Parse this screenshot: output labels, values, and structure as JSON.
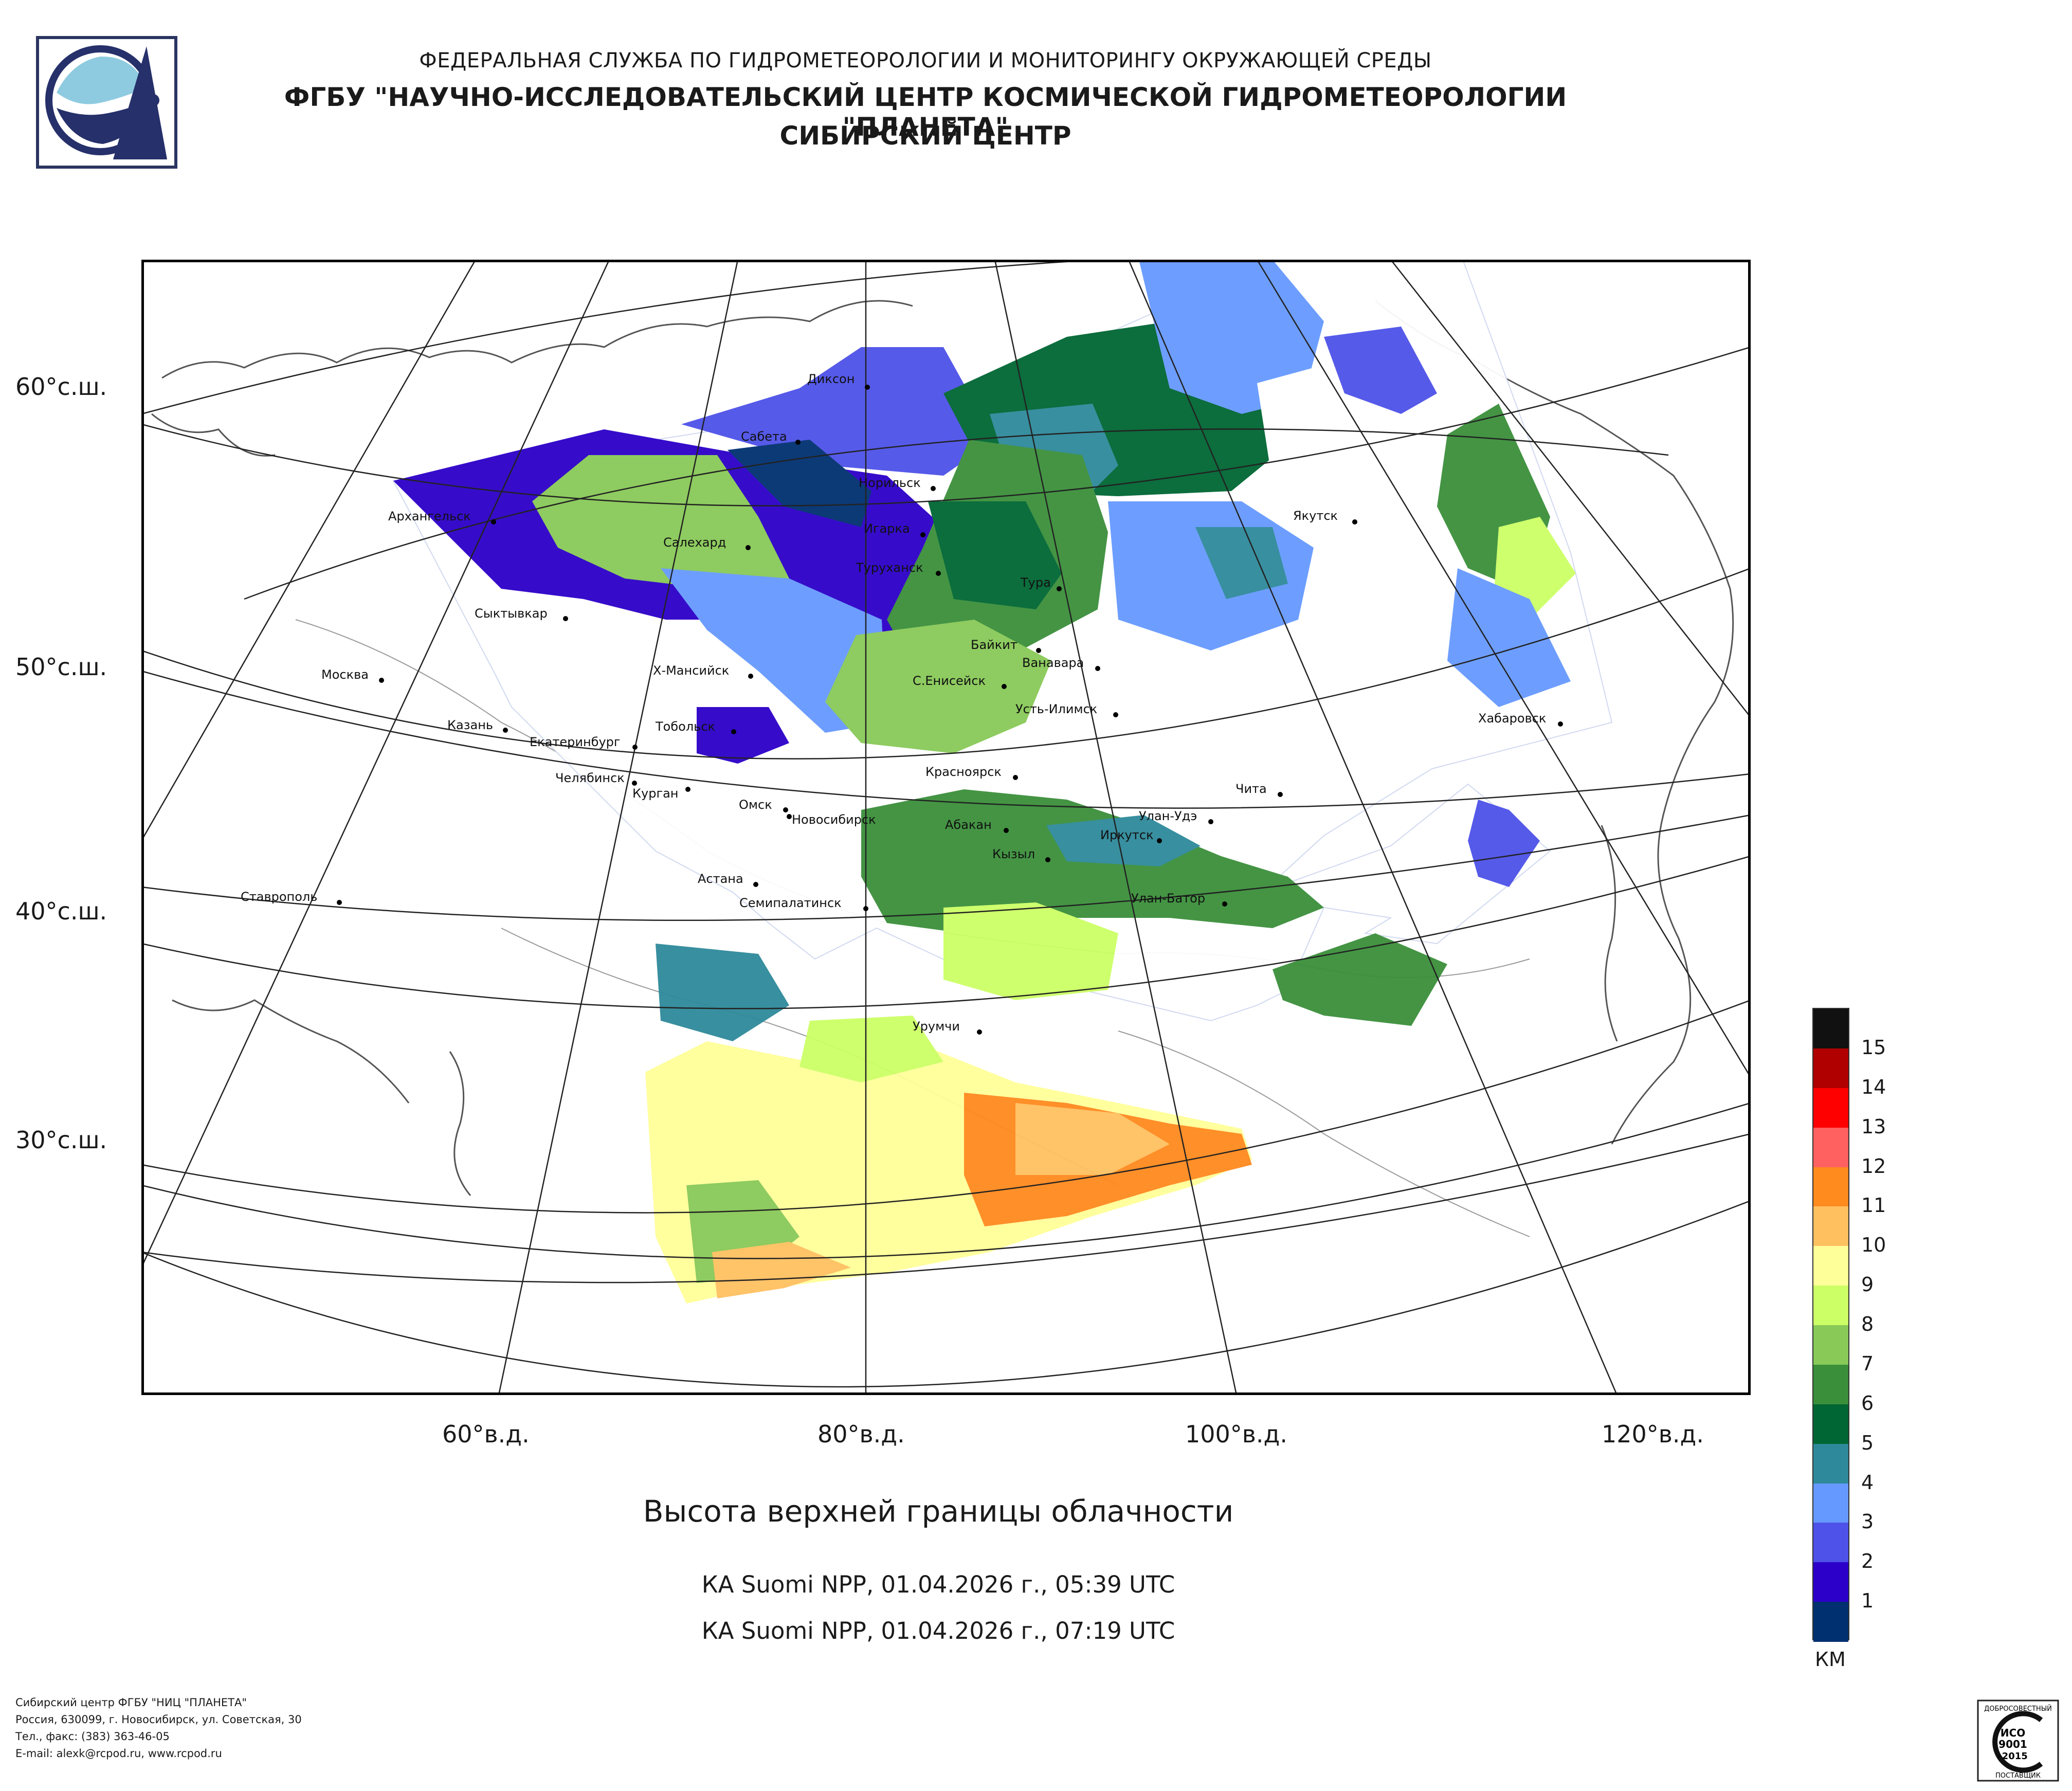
{
  "header": {
    "line1": "ФЕДЕРАЛЬНАЯ СЛУЖБА ПО ГИДРОМЕТЕОРОЛОГИИ И МОНИТОРИНГУ ОКРУЖАЮЩЕЙ СРЕДЫ",
    "line2": "ФГБУ \"НАУЧНО-ИССЛЕДОВАТЕЛЬСКИЙ ЦЕНТР КОСМИЧЕСКОЙ ГИДРОМЕТЕОРОЛОГИИ \"ПЛАНЕТА\"",
    "line3": "СИБИРСКИЙ ЦЕНТР"
  },
  "map": {
    "lat_labels": [
      "60°с.ш.",
      "50°с.ш.",
      "40°с.ш.",
      "30°с.ш."
    ],
    "lon_labels": [
      "60°в.д.",
      "80°в.д.",
      "100°в.д.",
      "120°в.д."
    ],
    "cities": [
      "Диксон",
      "Сабета",
      "Норильск",
      "Игарка",
      "Архангельск",
      "Салехард",
      "Туруханск",
      "Якутск",
      "Тура",
      "Сыктывкар",
      "Байкит",
      "Ванавара",
      "Москва",
      "Х-Мансийск",
      "С.Енисейск",
      "Усть-Илимск",
      "Казань",
      "Тобольск",
      "Хабаровск",
      "Екатеринбург",
      "Красноярск",
      "Челябинск",
      "Курган",
      "Чита",
      "Омск",
      "Новосибирск",
      "Абакан",
      "Улан-Удэ",
      "Иркутск",
      "Кызыл",
      "Астана",
      "Ставрополь",
      "Улан-Батор",
      "Семипалатинск",
      "Урумчи"
    ]
  },
  "title": "Высота верхней границы облачности",
  "passes": [
    "КА Suomi NPP, 01.04.2026 г., 05:39 UTC",
    "КА Suomi NPP, 01.04.2026 г., 07:19 UTC"
  ],
  "legend": {
    "unit": "КМ",
    "labels": [
      "15",
      "14",
      "13",
      "12",
      "11",
      "10",
      "9",
      "8",
      "7",
      "6",
      "5",
      "4",
      "3",
      "2",
      "1"
    ],
    "colors": [
      "#111111",
      "#b00000",
      "#ff0000",
      "#ff6060",
      "#ff8a1e",
      "#ffc060",
      "#ffff99",
      "#ccff66",
      "#88c958",
      "#3a8f3a",
      "#006633",
      "#2e8a9a",
      "#6699ff",
      "#4e52e8",
      "#2c00c8",
      "#003070"
    ]
  },
  "footer": {
    "lines": [
      "Сибирский центр ФГБУ \"НИЦ \"ПЛАНЕТА\"",
      "Россия, 630099, г. Новосибирск, ул. Советская, 30",
      "Тел., факс: (383) 363-46-05",
      "E-mail: alexk@rcpod.ru, www.rcpod.ru"
    ]
  },
  "certificate": {
    "top_text": "ДОБРОСОВЕСТНЫЙ",
    "code1": "ИСО",
    "code2": "9001",
    "code3": "-2015",
    "bottom_text": "ПОСТАВЩИК"
  }
}
